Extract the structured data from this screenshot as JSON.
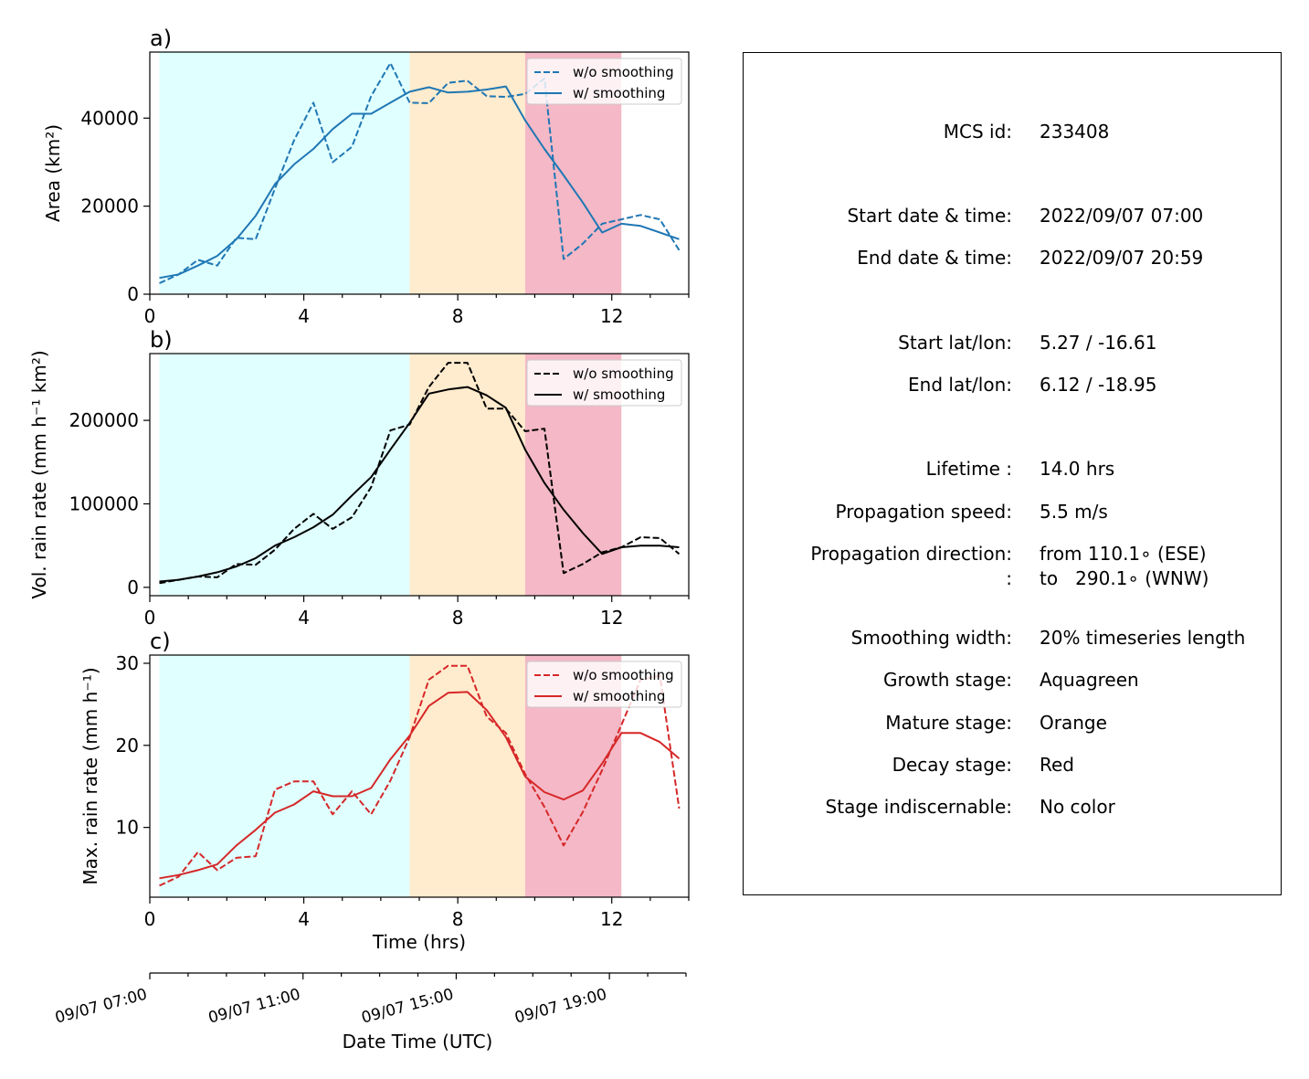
{
  "chart_data": [
    {
      "type": "line",
      "panel_label": "a)",
      "ylabel": "Area  (km²)",
      "xlim": [
        0,
        14
      ],
      "ylim": [
        0,
        55000
      ],
      "xticks": [
        0,
        4,
        8,
        12
      ],
      "yticks": [
        0,
        20000,
        40000
      ],
      "stages": [
        {
          "name": "Aquagreen",
          "from": 0.25,
          "to": 6.75,
          "color": "#e0ffff"
        },
        {
          "name": "Orange",
          "from": 6.75,
          "to": 9.75,
          "color": "#ffebcd"
        },
        {
          "name": "Red",
          "from": 9.75,
          "to": 12.25,
          "color": "#f4b8c6"
        }
      ],
      "series": [
        {
          "name": "w/o smoothing",
          "style": "dashed",
          "color": "#1f77b4",
          "x": [
            0.25,
            0.75,
            1.25,
            1.75,
            2.25,
            2.75,
            3.25,
            3.75,
            4.25,
            4.75,
            5.25,
            5.75,
            6.25,
            6.75,
            7.25,
            7.75,
            8.25,
            8.75,
            9.25,
            9.75,
            10.25,
            10.75,
            11.25,
            11.75,
            12.25,
            12.75,
            13.25,
            13.75
          ],
          "y": [
            2500,
            4500,
            7800,
            6500,
            12800,
            12500,
            24000,
            35000,
            43500,
            30000,
            33500,
            45000,
            52500,
            43500,
            43400,
            48000,
            48500,
            45000,
            44800,
            45500,
            49000,
            8000,
            11500,
            16000,
            17000,
            18000,
            17000,
            10000
          ]
        },
        {
          "name": "w/ smoothing",
          "style": "solid",
          "color": "#1f77b4",
          "x": [
            0.25,
            0.75,
            1.25,
            1.75,
            2.25,
            2.75,
            3.25,
            3.75,
            4.25,
            4.75,
            5.25,
            5.75,
            6.25,
            6.75,
            7.25,
            7.75,
            8.25,
            8.75,
            9.25,
            9.75,
            10.25,
            10.75,
            11.25,
            11.75,
            12.25,
            12.75,
            13.25,
            13.75
          ],
          "y": [
            3700,
            4500,
            6500,
            8700,
            12500,
            17800,
            25000,
            29500,
            33000,
            37500,
            41000,
            41000,
            43500,
            46000,
            47000,
            45800,
            46000,
            46500,
            47200,
            39500,
            33000,
            27000,
            20800,
            14000,
            16000,
            15500,
            14000,
            12500
          ]
        }
      ]
    },
    {
      "type": "line",
      "panel_label": "b)",
      "ylabel": "Vol. rain rate (mm h⁻¹ km²)",
      "xlim": [
        0,
        14
      ],
      "ylim": [
        -10000,
        280000
      ],
      "xticks": [
        0,
        4,
        8,
        12
      ],
      "yticks": [
        0,
        100000,
        200000
      ],
      "stages": [
        {
          "name": "Aquagreen",
          "from": 0.25,
          "to": 6.75,
          "color": "#e0ffff"
        },
        {
          "name": "Orange",
          "from": 6.75,
          "to": 9.75,
          "color": "#ffebcd"
        },
        {
          "name": "Red",
          "from": 9.75,
          "to": 12.25,
          "color": "#f4b8c6"
        }
      ],
      "series": [
        {
          "name": "w/o smoothing",
          "style": "dashed",
          "color": "#000000",
          "x": [
            0.25,
            0.75,
            1.25,
            1.75,
            2.25,
            2.75,
            3.25,
            3.75,
            4.25,
            4.75,
            5.25,
            5.75,
            6.25,
            6.75,
            7.25,
            7.75,
            8.25,
            8.75,
            9.25,
            9.75,
            10.25,
            10.75,
            11.25,
            11.75,
            12.25,
            12.75,
            13.25,
            13.75
          ],
          "y": [
            5000,
            9000,
            13000,
            12000,
            28000,
            27000,
            45000,
            70000,
            88000,
            70000,
            84000,
            120000,
            188000,
            195000,
            240000,
            269000,
            269000,
            214000,
            214000,
            187000,
            190000,
            17000,
            28000,
            42000,
            48000,
            60000,
            59000,
            40000
          ]
        },
        {
          "name": "w/ smoothing",
          "style": "solid",
          "color": "#000000",
          "x": [
            0.25,
            0.75,
            1.25,
            1.75,
            2.25,
            2.75,
            3.25,
            3.75,
            4.25,
            4.75,
            5.25,
            5.75,
            6.25,
            6.75,
            7.25,
            7.75,
            8.25,
            8.75,
            9.25,
            9.75,
            10.25,
            10.75,
            11.25,
            11.75,
            12.25,
            12.75,
            13.25,
            13.75
          ],
          "y": [
            7000,
            9000,
            13000,
            18000,
            25000,
            35000,
            50000,
            60000,
            72000,
            87000,
            110000,
            132000,
            165000,
            197000,
            232000,
            237000,
            240000,
            230000,
            215000,
            165000,
            125000,
            93000,
            65000,
            40000,
            48000,
            50000,
            50000,
            48000
          ]
        }
      ]
    },
    {
      "type": "line",
      "panel_label": "c)",
      "ylabel": "Max. rain rate  (mm h⁻¹)",
      "xlabel": "Time (hrs)",
      "xlim": [
        0,
        14
      ],
      "ylim": [
        1.5,
        31
      ],
      "xticks": [
        0,
        4,
        8,
        12
      ],
      "yticks": [
        10,
        20,
        30
      ],
      "stages": [
        {
          "name": "Aquagreen",
          "from": 0.25,
          "to": 6.75,
          "color": "#e0ffff"
        },
        {
          "name": "Orange",
          "from": 6.75,
          "to": 9.75,
          "color": "#ffebcd"
        },
        {
          "name": "Red",
          "from": 9.75,
          "to": 12.25,
          "color": "#f4b8c6"
        }
      ],
      "series": [
        {
          "name": "w/o smoothing",
          "style": "dashed",
          "color": "#d62728",
          "x": [
            0.25,
            0.75,
            1.25,
            1.75,
            2.25,
            2.75,
            3.25,
            3.75,
            4.25,
            4.75,
            5.25,
            5.75,
            6.25,
            6.75,
            7.25,
            7.75,
            8.25,
            8.75,
            9.25,
            9.75,
            10.25,
            10.75,
            11.25,
            11.75,
            12.25,
            12.75,
            13.25,
            13.75
          ],
          "y": [
            2.9,
            4.0,
            7.0,
            4.8,
            6.3,
            6.5,
            14.6,
            15.6,
            15.6,
            11.6,
            14.4,
            11.6,
            15.7,
            21.0,
            28.0,
            29.7,
            29.7,
            23.5,
            21.5,
            16.5,
            12.5,
            7.8,
            11.9,
            17.0,
            22.5,
            28.0,
            28.5,
            12.3
          ]
        },
        {
          "name": "w/ smoothing",
          "style": "solid",
          "color": "#d62728",
          "x": [
            0.25,
            0.75,
            1.25,
            1.75,
            2.25,
            2.75,
            3.25,
            3.75,
            4.25,
            4.75,
            5.25,
            5.75,
            6.25,
            6.75,
            7.25,
            7.75,
            8.25,
            8.75,
            9.25,
            9.75,
            10.25,
            10.75,
            11.25,
            11.75,
            12.25,
            12.75,
            13.25,
            13.75
          ],
          "y": [
            3.8,
            4.2,
            4.8,
            5.5,
            7.8,
            9.7,
            11.8,
            12.8,
            14.4,
            13.8,
            13.8,
            14.8,
            18.3,
            21.2,
            24.8,
            26.4,
            26.5,
            24.3,
            21.0,
            16.2,
            14.3,
            13.4,
            14.5,
            17.8,
            21.5,
            21.5,
            20.4,
            18.4
          ]
        }
      ]
    },
    {
      "type": "axis",
      "xlabel": "Date Time (UTC)",
      "xlim": [
        0,
        14
      ],
      "ticks": [
        {
          "x": 0,
          "label": "09/07 07:00"
        },
        {
          "x": 4,
          "label": "09/07 11:00"
        },
        {
          "x": 8,
          "label": "09/07 15:00"
        },
        {
          "x": 12,
          "label": "09/07 19:00"
        }
      ]
    }
  ],
  "info": {
    "rows": [
      {
        "label": "MCS id:",
        "value": "233408"
      },
      {
        "label": "Start date & time:",
        "value": "2022/09/07 07:00"
      },
      {
        "label": "End date & time:",
        "value": "2022/09/07 20:59"
      },
      {
        "label": "Start lat/lon:",
        "value": "5.27 / -16.61"
      },
      {
        "label": "End lat/lon:",
        "value": "6.12 / -18.95"
      },
      {
        "label": "Lifetime :",
        "value": "14.0 hrs"
      },
      {
        "label": "Propagation speed:",
        "value": "5.5 m/s"
      },
      {
        "label": "Propagation direction:",
        "value": "from 110.1∘ (ESE)"
      },
      {
        "label": ":",
        "value": "to   290.1∘ (WNW)"
      },
      {
        "label": "Smoothing width:",
        "value": "20% timeseries length"
      },
      {
        "label": "Growth stage:",
        "value": "Aquagreen"
      },
      {
        "label": "Mature stage:",
        "value": "Orange"
      },
      {
        "label": "Decay stage:",
        "value": "Red"
      },
      {
        "label": "Stage indiscernable:",
        "value": "No color"
      }
    ]
  }
}
